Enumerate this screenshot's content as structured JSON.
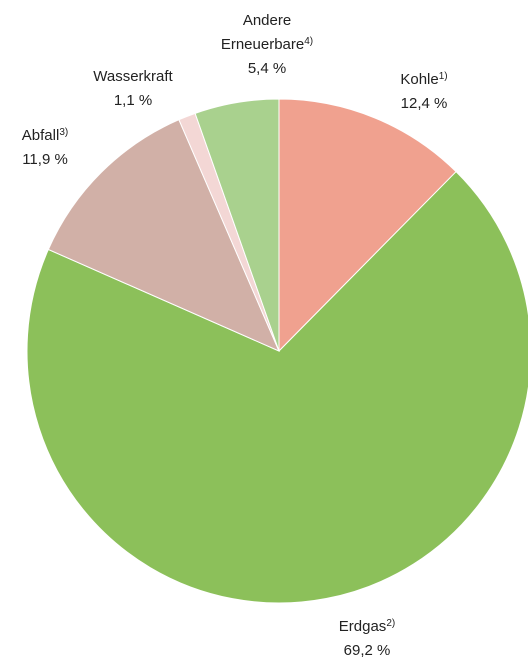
{
  "chart_data": {
    "type": "pie",
    "categories": [
      "Kohle",
      "Erdgas",
      "Abfall",
      "Wasserkraft",
      "Andere Erneuerbare"
    ],
    "footnotes": [
      "1)",
      "2)",
      "3)",
      null,
      "4)"
    ],
    "values": [
      12.4,
      69.2,
      11.9,
      1.1,
      5.4
    ],
    "value_labels": [
      "12,4 %",
      "69,2 %",
      "11,9 %",
      "1,1 %",
      "5,4 %"
    ],
    "colors": [
      "#f0a18f",
      "#8cc05a",
      "#d1b0a7",
      "#f3d7d5",
      "#a9d18e"
    ]
  }
}
